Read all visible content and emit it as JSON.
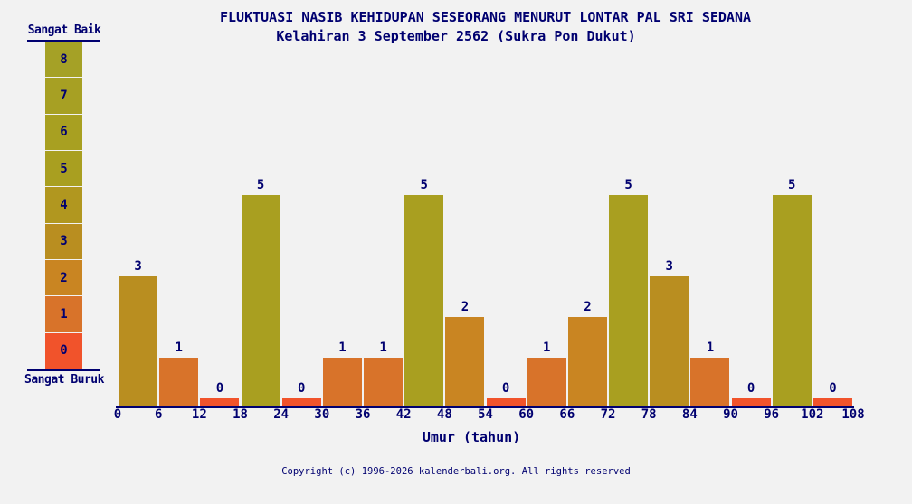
{
  "header": {
    "title": "FLUKTUASI NASIB KEHIDUPAN SESEORANG MENURUT LONTAR PAL SRI SEDANA",
    "subtitle": "Kelahiran 3 September 2562 (Sukra Pon Dukut)"
  },
  "scale": {
    "top_label": "Sangat Baik",
    "bottom_label": "Sangat Buruk",
    "levels": [
      8,
      7,
      6,
      5,
      4,
      3,
      2,
      1,
      0
    ]
  },
  "palette": {
    "8": "#a5a126",
    "7": "#a7a023",
    "6": "#a8a021",
    "5": "#a99f20",
    "4": "#b1971f",
    "3": "#b98e20",
    "2": "#c98522",
    "1": "#d8732a",
    "0": "#f1532b"
  },
  "chart_data": {
    "type": "bar",
    "title": "FLUKTUASI NASIB KEHIDUPAN SESEORANG MENURUT LONTAR PAL SRI SEDANA",
    "subtitle": "Kelahiran 3 September 2562 (Sukra Pon Dukut)",
    "xlabel": "Umur (tahun)",
    "ylabel": "",
    "x_ticks": [
      0,
      6,
      12,
      18,
      24,
      30,
      36,
      42,
      48,
      54,
      60,
      66,
      72,
      78,
      84,
      90,
      96,
      102,
      108
    ],
    "categories": [
      "0-6",
      "6-12",
      "12-18",
      "18-24",
      "24-30",
      "30-36",
      "36-42",
      "42-48",
      "48-54",
      "54-60",
      "60-66",
      "66-72",
      "72-78",
      "78-84",
      "84-90",
      "90-96",
      "96-102",
      "102-108"
    ],
    "values": [
      3,
      1,
      0,
      5,
      0,
      1,
      1,
      5,
      2,
      0,
      1,
      2,
      5,
      3,
      1,
      0,
      5,
      0
    ],
    "ylim": [
      0,
      8
    ],
    "grid": false,
    "legend_position": "left",
    "bar_colors_follow_value_palette": true
  },
  "footer": {
    "copyright": "Copyright (c) 1996-2026 kalenderbali.org. All rights reserved"
  },
  "colors": {
    "background": "#f2f2f2",
    "text": "#000070",
    "axis": "#000070",
    "cell_gap": "#ffffff"
  }
}
